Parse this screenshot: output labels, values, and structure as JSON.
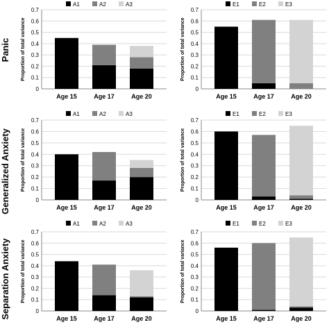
{
  "colors": {
    "black": "#000000",
    "mid": "#808080",
    "light": "#d3d3d3",
    "grid": "#d9d9d9",
    "axis": "#888888",
    "text": "#000000"
  },
  "chart_data": [
    {
      "type": "bar",
      "stacked": true,
      "row_label": "Panic",
      "ylabel": "Proportion of total variance",
      "ylim": [
        0,
        0.7
      ],
      "yticks": [
        "0",
        "0.1",
        "0.2",
        "0.3",
        "0.4",
        "0.5",
        "0.6",
        "0.7"
      ],
      "categories": [
        "Age 15",
        "Age 17",
        "Age 20"
      ],
      "legend_position": "top",
      "series": [
        {
          "name": "A1",
          "color": "#000000",
          "values": [
            0.45,
            0.21,
            0.18
          ]
        },
        {
          "name": "A2",
          "color": "#808080",
          "values": [
            0.0,
            0.18,
            0.1
          ]
        },
        {
          "name": "A3",
          "color": "#d3d3d3",
          "values": [
            0.0,
            0.0,
            0.1
          ]
        }
      ]
    },
    {
      "type": "bar",
      "stacked": true,
      "row_label": "",
      "ylabel": "Proportion of total variance",
      "ylim": [
        0,
        0.7
      ],
      "yticks": [
        "0",
        "0.1",
        "0.2",
        "0.3",
        "0.4",
        "0.5",
        "0.6",
        "0.7"
      ],
      "categories": [
        "Age 15",
        "Age 17",
        "Age 20"
      ],
      "legend_position": "top",
      "series": [
        {
          "name": "E1",
          "color": "#000000",
          "values": [
            0.55,
            0.05,
            0.0
          ]
        },
        {
          "name": "E2",
          "color": "#808080",
          "values": [
            0.0,
            0.56,
            0.05
          ]
        },
        {
          "name": "E3",
          "color": "#d3d3d3",
          "values": [
            0.0,
            0.0,
            0.56
          ]
        }
      ]
    },
    {
      "type": "bar",
      "stacked": true,
      "row_label": "Generalized Anxiety",
      "ylabel": "Proportion of total variance",
      "ylim": [
        0,
        0.7
      ],
      "yticks": [
        "0",
        "0.1",
        "0.2",
        "0.3",
        "0.4",
        "0.5",
        "0.6",
        "0.7"
      ],
      "categories": [
        "Age 15",
        "Age 17",
        "Age 20"
      ],
      "legend_position": "top",
      "series": [
        {
          "name": "A1",
          "color": "#000000",
          "values": [
            0.4,
            0.17,
            0.2
          ]
        },
        {
          "name": "A2",
          "color": "#808080",
          "values": [
            0.0,
            0.25,
            0.08
          ]
        },
        {
          "name": "A3",
          "color": "#d3d3d3",
          "values": [
            0.0,
            0.0,
            0.07
          ]
        }
      ]
    },
    {
      "type": "bar",
      "stacked": true,
      "row_label": "",
      "ylabel": "Proportion of total variance",
      "ylim": [
        0,
        0.7
      ],
      "yticks": [
        "0",
        "0.1",
        "0.2",
        "0.3",
        "0.4",
        "0.5",
        "0.6",
        "0.7"
      ],
      "categories": [
        "Age 15",
        "Age 17",
        "Age 20"
      ],
      "legend_position": "top",
      "series": [
        {
          "name": "E1",
          "color": "#000000",
          "values": [
            0.6,
            0.03,
            0.01
          ]
        },
        {
          "name": "E2",
          "color": "#808080",
          "values": [
            0.0,
            0.54,
            0.03
          ]
        },
        {
          "name": "E3",
          "color": "#d3d3d3",
          "values": [
            0.0,
            0.0,
            0.61
          ]
        }
      ]
    },
    {
      "type": "bar",
      "stacked": true,
      "row_label": "Separation Anxiety",
      "ylabel": "Proportion of total variance",
      "ylim": [
        0,
        0.7
      ],
      "yticks": [
        "0",
        "0.1",
        "0.2",
        "0.3",
        "0.4",
        "0.5",
        "0.6",
        "0.7"
      ],
      "categories": [
        "Age 15",
        "Age 17",
        "Age 20"
      ],
      "legend_position": "top",
      "series": [
        {
          "name": "A1",
          "color": "#000000",
          "values": [
            0.44,
            0.14,
            0.12
          ]
        },
        {
          "name": "A2",
          "color": "#808080",
          "values": [
            0.0,
            0.27,
            0.01
          ]
        },
        {
          "name": "A3",
          "color": "#d3d3d3",
          "values": [
            0.0,
            0.0,
            0.23
          ]
        }
      ]
    },
    {
      "type": "bar",
      "stacked": true,
      "row_label": "",
      "ylabel": "Proportion of total variance",
      "ylim": [
        0,
        0.7
      ],
      "yticks": [
        "0",
        "0.1",
        "0.2",
        "0.3",
        "0.4",
        "0.5",
        "0.6",
        "0.7"
      ],
      "categories": [
        "Age 15",
        "Age 17",
        "Age 20"
      ],
      "legend_position": "top",
      "series": [
        {
          "name": "E1",
          "color": "#000000",
          "values": [
            0.56,
            0.01,
            0.03
          ]
        },
        {
          "name": "E2",
          "color": "#808080",
          "values": [
            0.0,
            0.59,
            0.01
          ]
        },
        {
          "name": "E3",
          "color": "#d3d3d3",
          "values": [
            0.0,
            0.0,
            0.61
          ]
        }
      ]
    }
  ]
}
